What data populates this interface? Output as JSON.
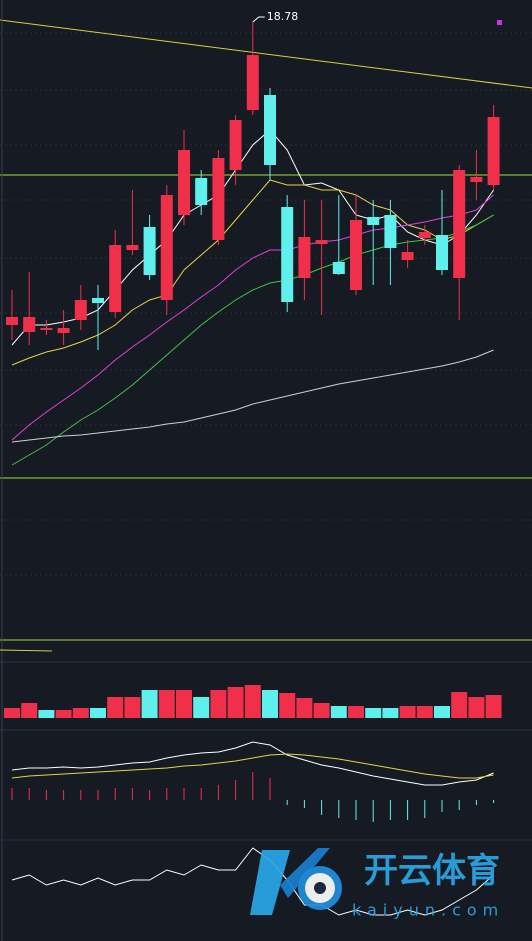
{
  "chart_data": [
    {
      "type": "candlestick",
      "annotation": "18.78",
      "up_color": "#f0304a",
      "down_color": "#5ff0ee",
      "ylim": [
        14.25,
        19.0
      ],
      "open": [
        15.75,
        15.68,
        15.7,
        15.67,
        15.8,
        16.02,
        15.88,
        16.5,
        16.73,
        16.0,
        16.85,
        17.22,
        16.6,
        17.3,
        17.9,
        18.05,
        16.93,
        16.22,
        16.56,
        16.38,
        16.1,
        16.83,
        16.85,
        16.4,
        16.62,
        16.65,
        16.22,
        17.18,
        17.15
      ],
      "high": [
        16.1,
        16.28,
        15.8,
        15.9,
        16.15,
        16.15,
        16.7,
        17.1,
        16.85,
        17.15,
        17.7,
        17.3,
        17.5,
        17.85,
        18.78,
        18.12,
        17.05,
        17.0,
        17.0,
        17.05,
        17.05,
        17.0,
        17.0,
        16.6,
        16.75,
        17.1,
        17.35,
        17.5,
        17.95
      ],
      "low": [
        15.6,
        15.55,
        15.65,
        15.55,
        15.7,
        15.5,
        15.82,
        16.45,
        16.2,
        15.85,
        16.75,
        16.85,
        16.55,
        17.15,
        17.85,
        17.2,
        15.88,
        16.0,
        15.85,
        16.25,
        16.05,
        16.15,
        16.15,
        16.32,
        16.55,
        16.25,
        15.8,
        17.0,
        17.1
      ],
      "close": [
        15.83,
        15.83,
        15.72,
        15.72,
        16.0,
        15.97,
        16.55,
        16.55,
        16.25,
        17.05,
        17.5,
        16.95,
        17.42,
        17.8,
        18.45,
        17.35,
        15.98,
        16.63,
        16.6,
        16.26,
        16.8,
        16.75,
        16.52,
        16.48,
        16.68,
        16.3,
        17.3,
        17.23,
        17.83
      ],
      "series": [
        {
          "color": "#ffffff",
          "values": [
            15.55,
            15.75,
            15.75,
            15.78,
            15.82,
            15.9,
            16.1,
            16.3,
            16.45,
            16.6,
            16.85,
            16.95,
            17.05,
            17.3,
            17.55,
            17.7,
            17.5,
            17.15,
            17.17,
            17.1,
            16.85,
            16.8,
            16.85,
            16.68,
            16.6,
            16.55,
            16.65,
            16.85,
            17.1
          ]
        },
        {
          "color": "#e8d24a",
          "values": [
            15.35,
            15.42,
            15.48,
            15.52,
            15.58,
            15.65,
            15.75,
            15.9,
            16.0,
            16.05,
            16.3,
            16.45,
            16.6,
            16.8,
            17.0,
            17.2,
            17.15,
            17.15,
            17.1,
            17.1,
            17.05,
            16.95,
            16.9,
            16.75,
            16.7,
            16.6,
            16.65,
            16.75,
            16.85
          ]
        },
        {
          "color": "#e040e0",
          "values": [
            14.6,
            14.75,
            14.88,
            15.0,
            15.12,
            15.25,
            15.4,
            15.53,
            15.65,
            15.78,
            15.9,
            16.03,
            16.15,
            16.3,
            16.42,
            16.5,
            16.5,
            16.55,
            16.58,
            16.6,
            16.65,
            16.7,
            16.72,
            16.75,
            16.78,
            16.82,
            16.85,
            16.9,
            17.05
          ]
        },
        {
          "color": "#3cc83c",
          "values": [
            14.35,
            14.45,
            14.55,
            14.68,
            14.8,
            14.9,
            15.02,
            15.15,
            15.3,
            15.45,
            15.6,
            15.75,
            15.88,
            16.0,
            16.1,
            16.17,
            16.2,
            16.25,
            16.32,
            16.38,
            16.45,
            16.5,
            16.55,
            16.58,
            16.6,
            16.62,
            16.68,
            16.75,
            16.85
          ]
        },
        {
          "color": "#d0d0d0",
          "values": [
            14.58,
            14.6,
            14.62,
            14.64,
            14.65,
            14.67,
            14.69,
            14.71,
            14.73,
            14.76,
            14.78,
            14.82,
            14.86,
            14.9,
            14.96,
            15.0,
            15.04,
            15.08,
            15.12,
            15.16,
            15.19,
            15.22,
            15.25,
            15.28,
            15.31,
            15.34,
            15.38,
            15.43,
            15.5
          ]
        }
      ]
    },
    {
      "type": "bar",
      "ylim": [
        0,
        56
      ],
      "values": [
        10,
        15,
        8,
        8,
        10,
        10,
        21,
        21,
        28,
        28,
        28,
        21,
        28,
        31,
        33,
        28,
        25,
        20,
        15,
        12,
        12,
        10,
        10,
        12,
        12,
        12,
        26,
        21,
        23
      ],
      "colors": [
        "#f0304a",
        "#f0304a",
        "#5ff0ee",
        "#f0304a",
        "#f0304a",
        "#5ff0ee",
        "#f0304a",
        "#f0304a",
        "#5ff0ee",
        "#f0304a",
        "#f0304a",
        "#5ff0ee",
        "#f0304a",
        "#f0304a",
        "#f0304a",
        "#5ff0ee",
        "#f0304a",
        "#f0304a",
        "#f0304a",
        "#5ff0ee",
        "#f0304a",
        "#5ff0ee",
        "#5ff0ee",
        "#f0304a",
        "#f0304a",
        "#5ff0ee",
        "#f0304a",
        "#f0304a",
        "#f0304a"
      ]
    },
    {
      "type": "macd",
      "ylim": [
        -0.3,
        0.65
      ],
      "up_color": "#f0304a",
      "down_color": "#5ff0ee",
      "values": [
        0.12,
        0.12,
        0.1,
        0.1,
        0.1,
        0.1,
        0.12,
        0.12,
        0.1,
        0.12,
        0.12,
        0.12,
        0.15,
        0.2,
        0.28,
        0.22,
        -0.05,
        -0.08,
        -0.15,
        -0.18,
        -0.2,
        -0.22,
        -0.2,
        -0.2,
        -0.18,
        -0.12,
        -0.1,
        -0.05,
        -0.03
      ],
      "series": [
        {
          "color": "#ffffff",
          "values": [
            0.3,
            0.32,
            0.32,
            0.33,
            0.32,
            0.33,
            0.35,
            0.37,
            0.38,
            0.42,
            0.45,
            0.47,
            0.48,
            0.52,
            0.58,
            0.55,
            0.45,
            0.4,
            0.35,
            0.32,
            0.28,
            0.24,
            0.21,
            0.18,
            0.15,
            0.15,
            0.18,
            0.2,
            0.27
          ]
        },
        {
          "color": "#e8d24a",
          "values": [
            0.22,
            0.24,
            0.25,
            0.26,
            0.27,
            0.28,
            0.29,
            0.3,
            0.31,
            0.32,
            0.34,
            0.35,
            0.37,
            0.39,
            0.42,
            0.45,
            0.46,
            0.45,
            0.43,
            0.41,
            0.38,
            0.35,
            0.32,
            0.29,
            0.26,
            0.24,
            0.22,
            0.22,
            0.25
          ]
        }
      ]
    },
    {
      "type": "line",
      "ylim": [
        0,
        95
      ],
      "color": "#ffffff",
      "values": [
        60,
        65,
        55,
        60,
        55,
        62,
        55,
        60,
        60,
        70,
        65,
        75,
        70,
        70,
        92,
        80,
        60,
        35,
        35,
        25,
        30,
        25,
        25,
        30,
        25,
        30,
        40,
        50,
        65
      ]
    }
  ],
  "watermark": {
    "name": "开云体育",
    "site": "kaiyun.com"
  }
}
